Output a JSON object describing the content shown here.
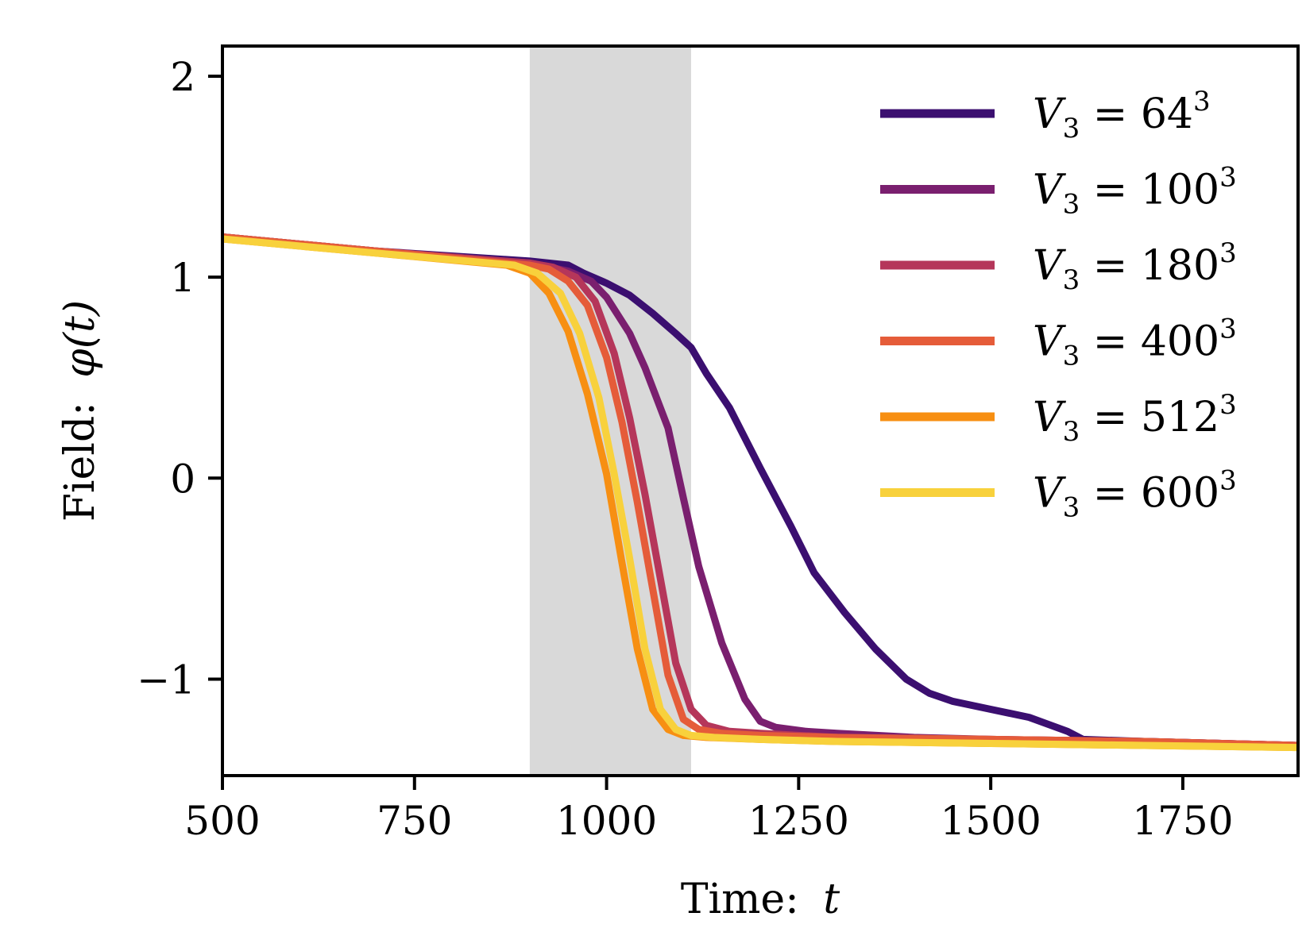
{
  "chart_data": {
    "type": "line",
    "title": "",
    "xlabel": "Time: t",
    "xlabel_text": "Time:",
    "xlabel_var": "t",
    "ylabel": "Field: φ(t)",
    "ylabel_text": "Field:",
    "ylabel_var": "φ(t)",
    "xlim": [
      500,
      1900
    ],
    "ylim": [
      -1.48,
      2.15
    ],
    "xticks": [
      500,
      750,
      1000,
      1250,
      1500,
      1750
    ],
    "xtick_labels": [
      "500",
      "750",
      "1000",
      "1250",
      "1500",
      "1750"
    ],
    "yticks": [
      2,
      1,
      0,
      -1
    ],
    "ytick_labels": [
      "2",
      "1",
      "0",
      "−1"
    ],
    "grid": false,
    "legend_position": "top-right",
    "shaded_region": {
      "x_start": 900,
      "x_end": 1110,
      "color": "#d9d9d9"
    },
    "series": [
      {
        "name": "V3 = 64^3",
        "var": "V",
        "sub": "3",
        "eq": " = ",
        "base": "64",
        "exp": "3",
        "color": "#3b0f70",
        "x": [
          500,
          700,
          900,
          950,
          970,
          1000,
          1030,
          1060,
          1090,
          1110,
          1130,
          1160,
          1200,
          1240,
          1270,
          1310,
          1350,
          1390,
          1420,
          1450,
          1500,
          1550,
          1600,
          1620,
          1700,
          1800,
          1900
        ],
        "y": [
          1.2,
          1.13,
          1.08,
          1.06,
          1.02,
          0.97,
          0.91,
          0.82,
          0.72,
          0.65,
          0.52,
          0.35,
          0.05,
          -0.24,
          -0.47,
          -0.67,
          -0.85,
          -1.0,
          -1.07,
          -1.11,
          -1.15,
          -1.19,
          -1.26,
          -1.3,
          -1.31,
          -1.32,
          -1.33
        ]
      },
      {
        "name": "V3 = 100^3",
        "var": "V",
        "sub": "3",
        "eq": " = ",
        "base": "100",
        "exp": "3",
        "color": "#7a1f6f",
        "x": [
          500,
          700,
          900,
          950,
          980,
          1000,
          1030,
          1050,
          1080,
          1100,
          1120,
          1150,
          1180,
          1200,
          1220,
          1260,
          1300,
          1400,
          1500,
          1700,
          1900
        ],
        "y": [
          1.2,
          1.13,
          1.07,
          1.03,
          0.98,
          0.9,
          0.72,
          0.55,
          0.25,
          -0.1,
          -0.44,
          -0.82,
          -1.1,
          -1.21,
          -1.24,
          -1.26,
          -1.27,
          -1.29,
          -1.3,
          -1.31,
          -1.33
        ]
      },
      {
        "name": "V3 = 180^3",
        "var": "V",
        "sub": "3",
        "eq": " = ",
        "base": "180",
        "exp": "3",
        "color": "#b5365a",
        "x": [
          500,
          700,
          900,
          930,
          960,
          985,
          1010,
          1030,
          1050,
          1070,
          1090,
          1110,
          1130,
          1160,
          1200,
          1300,
          1500,
          1700,
          1900
        ],
        "y": [
          1.2,
          1.13,
          1.07,
          1.05,
          1.0,
          0.88,
          0.62,
          0.3,
          -0.08,
          -0.5,
          -0.92,
          -1.15,
          -1.23,
          -1.26,
          -1.27,
          -1.29,
          -1.3,
          -1.31,
          -1.33
        ]
      },
      {
        "name": "V3 = 400^3",
        "var": "V",
        "sub": "3",
        "eq": " = ",
        "base": "400",
        "exp": "3",
        "color": "#e55c39",
        "x": [
          500,
          700,
          900,
          925,
          950,
          975,
          1000,
          1020,
          1040,
          1060,
          1080,
          1100,
          1120,
          1150,
          1200,
          1300,
          1500,
          1700,
          1900
        ],
        "y": [
          1.2,
          1.13,
          1.06,
          1.04,
          0.98,
          0.86,
          0.6,
          0.28,
          -0.12,
          -0.55,
          -0.98,
          -1.2,
          -1.25,
          -1.27,
          -1.28,
          -1.29,
          -1.3,
          -1.31,
          -1.33
        ]
      },
      {
        "name": "V3 = 512^3",
        "var": "V",
        "sub": "3",
        "eq": " = ",
        "base": "512",
        "exp": "3",
        "color": "#f78f12",
        "x": [
          500,
          700,
          870,
          900,
          925,
          950,
          975,
          1000,
          1020,
          1040,
          1060,
          1080,
          1100,
          1130,
          1200,
          1300,
          1500,
          1700,
          1900
        ],
        "y": [
          1.19,
          1.12,
          1.06,
          1.02,
          0.92,
          0.73,
          0.42,
          0.02,
          -0.42,
          -0.85,
          -1.15,
          -1.25,
          -1.28,
          -1.29,
          -1.3,
          -1.31,
          -1.32,
          -1.33,
          -1.34
        ]
      },
      {
        "name": "V3 = 600^3",
        "var": "V",
        "sub": "3",
        "eq": " = ",
        "base": "600",
        "exp": "3",
        "color": "#f8d13c",
        "x": [
          500,
          700,
          880,
          910,
          940,
          965,
          990,
          1010,
          1030,
          1050,
          1070,
          1090,
          1110,
          1140,
          1200,
          1300,
          1500,
          1700,
          1900
        ],
        "y": [
          1.19,
          1.12,
          1.06,
          1.02,
          0.92,
          0.72,
          0.4,
          0.02,
          -0.4,
          -0.85,
          -1.15,
          -1.25,
          -1.28,
          -1.29,
          -1.3,
          -1.31,
          -1.32,
          -1.33,
          -1.34
        ]
      }
    ]
  }
}
